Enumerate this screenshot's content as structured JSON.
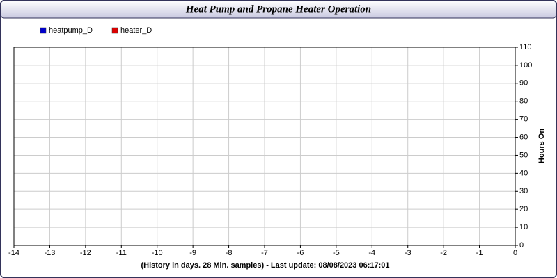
{
  "chart_data": {
    "type": "line",
    "title": "Heat Pump and Propane Heater Operation",
    "xlabel": "(History in days. 28 Min. samples) - Last update: 08/08/2023 06:17:01",
    "ylabel": "Hours On",
    "x": [],
    "series": [
      {
        "name": "heatpump_D",
        "color": "#0000cc",
        "values": []
      },
      {
        "name": "heater_D",
        "color": "#dd0000",
        "values": []
      }
    ],
    "xlim": [
      -14,
      0
    ],
    "xticks": [
      -14,
      -13,
      -12,
      -11,
      -10,
      -9,
      -8,
      -7,
      -6,
      -5,
      -4,
      -3,
      -2,
      -1,
      0
    ],
    "ylim": [
      0,
      110
    ],
    "yticks": [
      0,
      10,
      20,
      30,
      40,
      50,
      60,
      70,
      80,
      90,
      100,
      110
    ],
    "grid": true
  }
}
